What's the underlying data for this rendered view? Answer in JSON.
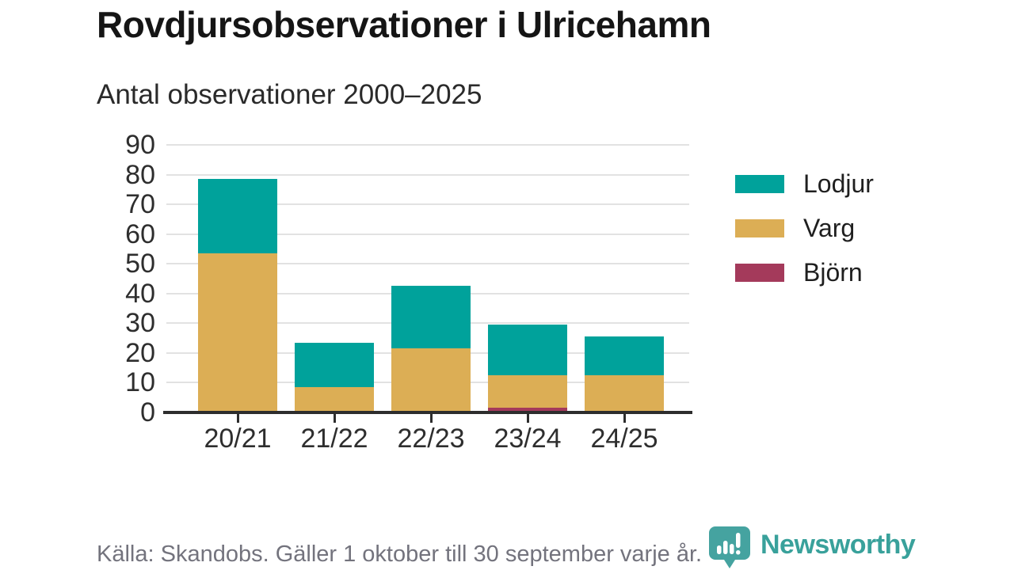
{
  "header": {
    "title": "Rovdjursobservationer i Ulricehamn",
    "subtitle": "Antal observationer 2000–2025"
  },
  "chart_data": {
    "type": "bar",
    "stacked": true,
    "title": "Rovdjursobservationer i Ulricehamn",
    "subtitle": "Antal observationer 2000–2025",
    "categories": [
      "20/21",
      "21/22",
      "22/23",
      "23/24",
      "24/25"
    ],
    "series": [
      {
        "name": "Lodjur",
        "color": "#00a29b",
        "values": [
          25,
          15,
          21,
          17,
          13
        ]
      },
      {
        "name": "Varg",
        "color": "#dcae55",
        "values": [
          53,
          8,
          21,
          11,
          12
        ]
      },
      {
        "name": "Björn",
        "color": "#a43a5b",
        "values": [
          0,
          0,
          0,
          1,
          0
        ]
      }
    ],
    "stack_order_bottom_to_top": [
      "Björn",
      "Varg",
      "Lodjur"
    ],
    "totals": [
      78,
      23,
      42,
      29,
      25
    ],
    "ylim": [
      0,
      90
    ],
    "ytick_step": 10,
    "yticks": [
      0,
      10,
      20,
      30,
      40,
      50,
      60,
      70,
      80,
      90
    ],
    "grid": true,
    "legend_position": "right",
    "legend_order": [
      "Lodjur",
      "Varg",
      "Björn"
    ]
  },
  "footer": {
    "source": "Källa: Skandobs. Gäller 1 oktober till 30 september varje år.",
    "brand": "Newsworthy"
  },
  "colors": {
    "axis": "#2d2d2d",
    "gridline": "#e2e2e2",
    "text": "#2e2e2e",
    "muted_text": "#73737d",
    "brand_teal": "#39a19b"
  }
}
